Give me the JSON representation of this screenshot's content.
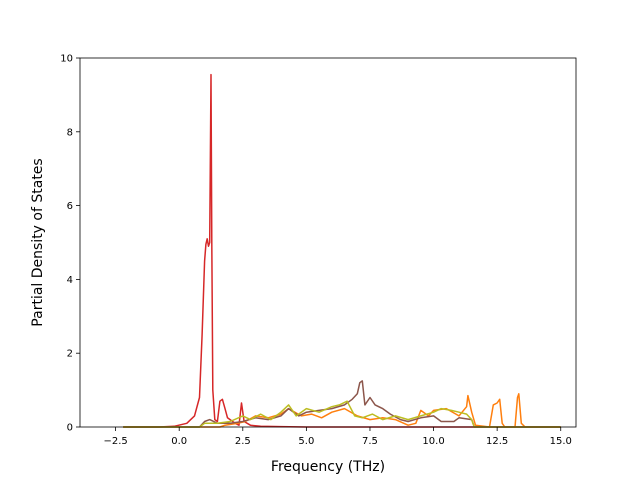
{
  "chart_data": {
    "type": "line",
    "title": "",
    "xlabel": "Frequency (THz)",
    "ylabel": "Partial Density of States",
    "xlim": [
      -3.9,
      15.6
    ],
    "ylim": [
      0,
      10
    ],
    "xticks": [
      -2.5,
      0.0,
      2.5,
      5.0,
      7.5,
      10.0,
      12.5,
      15.0
    ],
    "xtick_labels": [
      "−2.5",
      "0.0",
      "2.5",
      "5.0",
      "7.5",
      "10.0",
      "12.5",
      "15.0"
    ],
    "yticks": [
      0,
      2,
      4,
      6,
      8,
      10
    ],
    "ytick_labels": [
      "0",
      "2",
      "4",
      "6",
      "8",
      "10"
    ],
    "grid": false,
    "legend": "none",
    "series": [
      {
        "color": "#d62728",
        "points": [
          [
            -2.2,
            0
          ],
          [
            -0.8,
            0
          ],
          [
            -0.2,
            0.02
          ],
          [
            0.3,
            0.1
          ],
          [
            0.6,
            0.3
          ],
          [
            0.8,
            0.8
          ],
          [
            0.9,
            2.5
          ],
          [
            1.0,
            4.5
          ],
          [
            1.05,
            4.95
          ],
          [
            1.1,
            5.1
          ],
          [
            1.15,
            4.9
          ],
          [
            1.2,
            5.0
          ],
          [
            1.25,
            9.55
          ],
          [
            1.28,
            5.0
          ],
          [
            1.32,
            1.0
          ],
          [
            1.4,
            0.2
          ],
          [
            1.5,
            0.15
          ],
          [
            1.6,
            0.7
          ],
          [
            1.7,
            0.75
          ],
          [
            1.8,
            0.5
          ],
          [
            1.9,
            0.25
          ],
          [
            2.0,
            0.2
          ],
          [
            2.2,
            0.1
          ],
          [
            2.35,
            0.05
          ],
          [
            2.45,
            0.65
          ],
          [
            2.55,
            0.15
          ],
          [
            2.8,
            0.05
          ],
          [
            3.2,
            0.02
          ],
          [
            4.0,
            0.01
          ],
          [
            5.0,
            0
          ],
          [
            15.0,
            0
          ]
        ]
      },
      {
        "color": "#ff7f0e",
        "points": [
          [
            -2.2,
            0
          ],
          [
            1.6,
            0
          ],
          [
            1.8,
            0.05
          ],
          [
            2.3,
            0.1
          ],
          [
            2.6,
            0.15
          ],
          [
            3.0,
            0.3
          ],
          [
            3.5,
            0.25
          ],
          [
            4.0,
            0.35
          ],
          [
            4.3,
            0.5
          ],
          [
            4.8,
            0.3
          ],
          [
            5.2,
            0.35
          ],
          [
            5.6,
            0.25
          ],
          [
            6.0,
            0.4
          ],
          [
            6.5,
            0.5
          ],
          [
            7.0,
            0.3
          ],
          [
            7.5,
            0.2
          ],
          [
            8.0,
            0.25
          ],
          [
            8.5,
            0.2
          ],
          [
            9.0,
            0.05
          ],
          [
            9.3,
            0.1
          ],
          [
            9.5,
            0.45
          ],
          [
            9.8,
            0.3
          ],
          [
            10.0,
            0.45
          ],
          [
            10.5,
            0.5
          ],
          [
            11.0,
            0.3
          ],
          [
            11.3,
            0.55
          ],
          [
            11.35,
            0.85
          ],
          [
            11.5,
            0.4
          ],
          [
            11.65,
            0.05
          ],
          [
            12.2,
            0
          ],
          [
            12.35,
            0.6
          ],
          [
            12.5,
            0.65
          ],
          [
            12.6,
            0.75
          ],
          [
            12.7,
            0.1
          ],
          [
            12.8,
            0
          ],
          [
            13.2,
            0
          ],
          [
            13.3,
            0.8
          ],
          [
            13.35,
            0.9
          ],
          [
            13.45,
            0.1
          ],
          [
            13.6,
            0
          ],
          [
            15.0,
            0
          ]
        ]
      },
      {
        "color": "#8c564b",
        "points": [
          [
            -2.2,
            0
          ],
          [
            0.8,
            0
          ],
          [
            1.0,
            0.15
          ],
          [
            1.2,
            0.2
          ],
          [
            1.5,
            0.1
          ],
          [
            2.0,
            0.1
          ],
          [
            2.5,
            0.15
          ],
          [
            3.0,
            0.25
          ],
          [
            3.5,
            0.2
          ],
          [
            4.0,
            0.3
          ],
          [
            4.3,
            0.5
          ],
          [
            4.7,
            0.3
          ],
          [
            5.0,
            0.4
          ],
          [
            5.5,
            0.45
          ],
          [
            6.0,
            0.5
          ],
          [
            6.5,
            0.6
          ],
          [
            6.8,
            0.75
          ],
          [
            7.0,
            0.9
          ],
          [
            7.1,
            1.2
          ],
          [
            7.2,
            1.25
          ],
          [
            7.3,
            0.6
          ],
          [
            7.5,
            0.8
          ],
          [
            7.7,
            0.6
          ],
          [
            8.0,
            0.5
          ],
          [
            8.3,
            0.35
          ],
          [
            8.7,
            0.2
          ],
          [
            9.0,
            0.15
          ],
          [
            9.5,
            0.25
          ],
          [
            10.0,
            0.3
          ],
          [
            10.3,
            0.15
          ],
          [
            10.8,
            0.15
          ],
          [
            11.0,
            0.25
          ],
          [
            11.5,
            0.2
          ],
          [
            11.6,
            0
          ],
          [
            15.0,
            0
          ]
        ]
      },
      {
        "color": "#bcbd22",
        "points": [
          [
            -2.2,
            0
          ],
          [
            0.8,
            0
          ],
          [
            1.0,
            0.1
          ],
          [
            1.5,
            0.1
          ],
          [
            2.0,
            0.15
          ],
          [
            2.5,
            0.3
          ],
          [
            2.8,
            0.2
          ],
          [
            3.2,
            0.35
          ],
          [
            3.6,
            0.2
          ],
          [
            4.0,
            0.4
          ],
          [
            4.3,
            0.6
          ],
          [
            4.6,
            0.3
          ],
          [
            5.0,
            0.5
          ],
          [
            5.5,
            0.4
          ],
          [
            6.0,
            0.55
          ],
          [
            6.3,
            0.6
          ],
          [
            6.6,
            0.7
          ],
          [
            6.9,
            0.3
          ],
          [
            7.2,
            0.25
          ],
          [
            7.6,
            0.35
          ],
          [
            8.0,
            0.2
          ],
          [
            8.5,
            0.3
          ],
          [
            9.0,
            0.2
          ],
          [
            9.5,
            0.3
          ],
          [
            10.0,
            0.4
          ],
          [
            10.3,
            0.5
          ],
          [
            10.7,
            0.45
          ],
          [
            11.0,
            0.4
          ],
          [
            11.3,
            0.35
          ],
          [
            11.5,
            0.2
          ],
          [
            11.6,
            0
          ],
          [
            15.0,
            0
          ]
        ]
      }
    ]
  }
}
